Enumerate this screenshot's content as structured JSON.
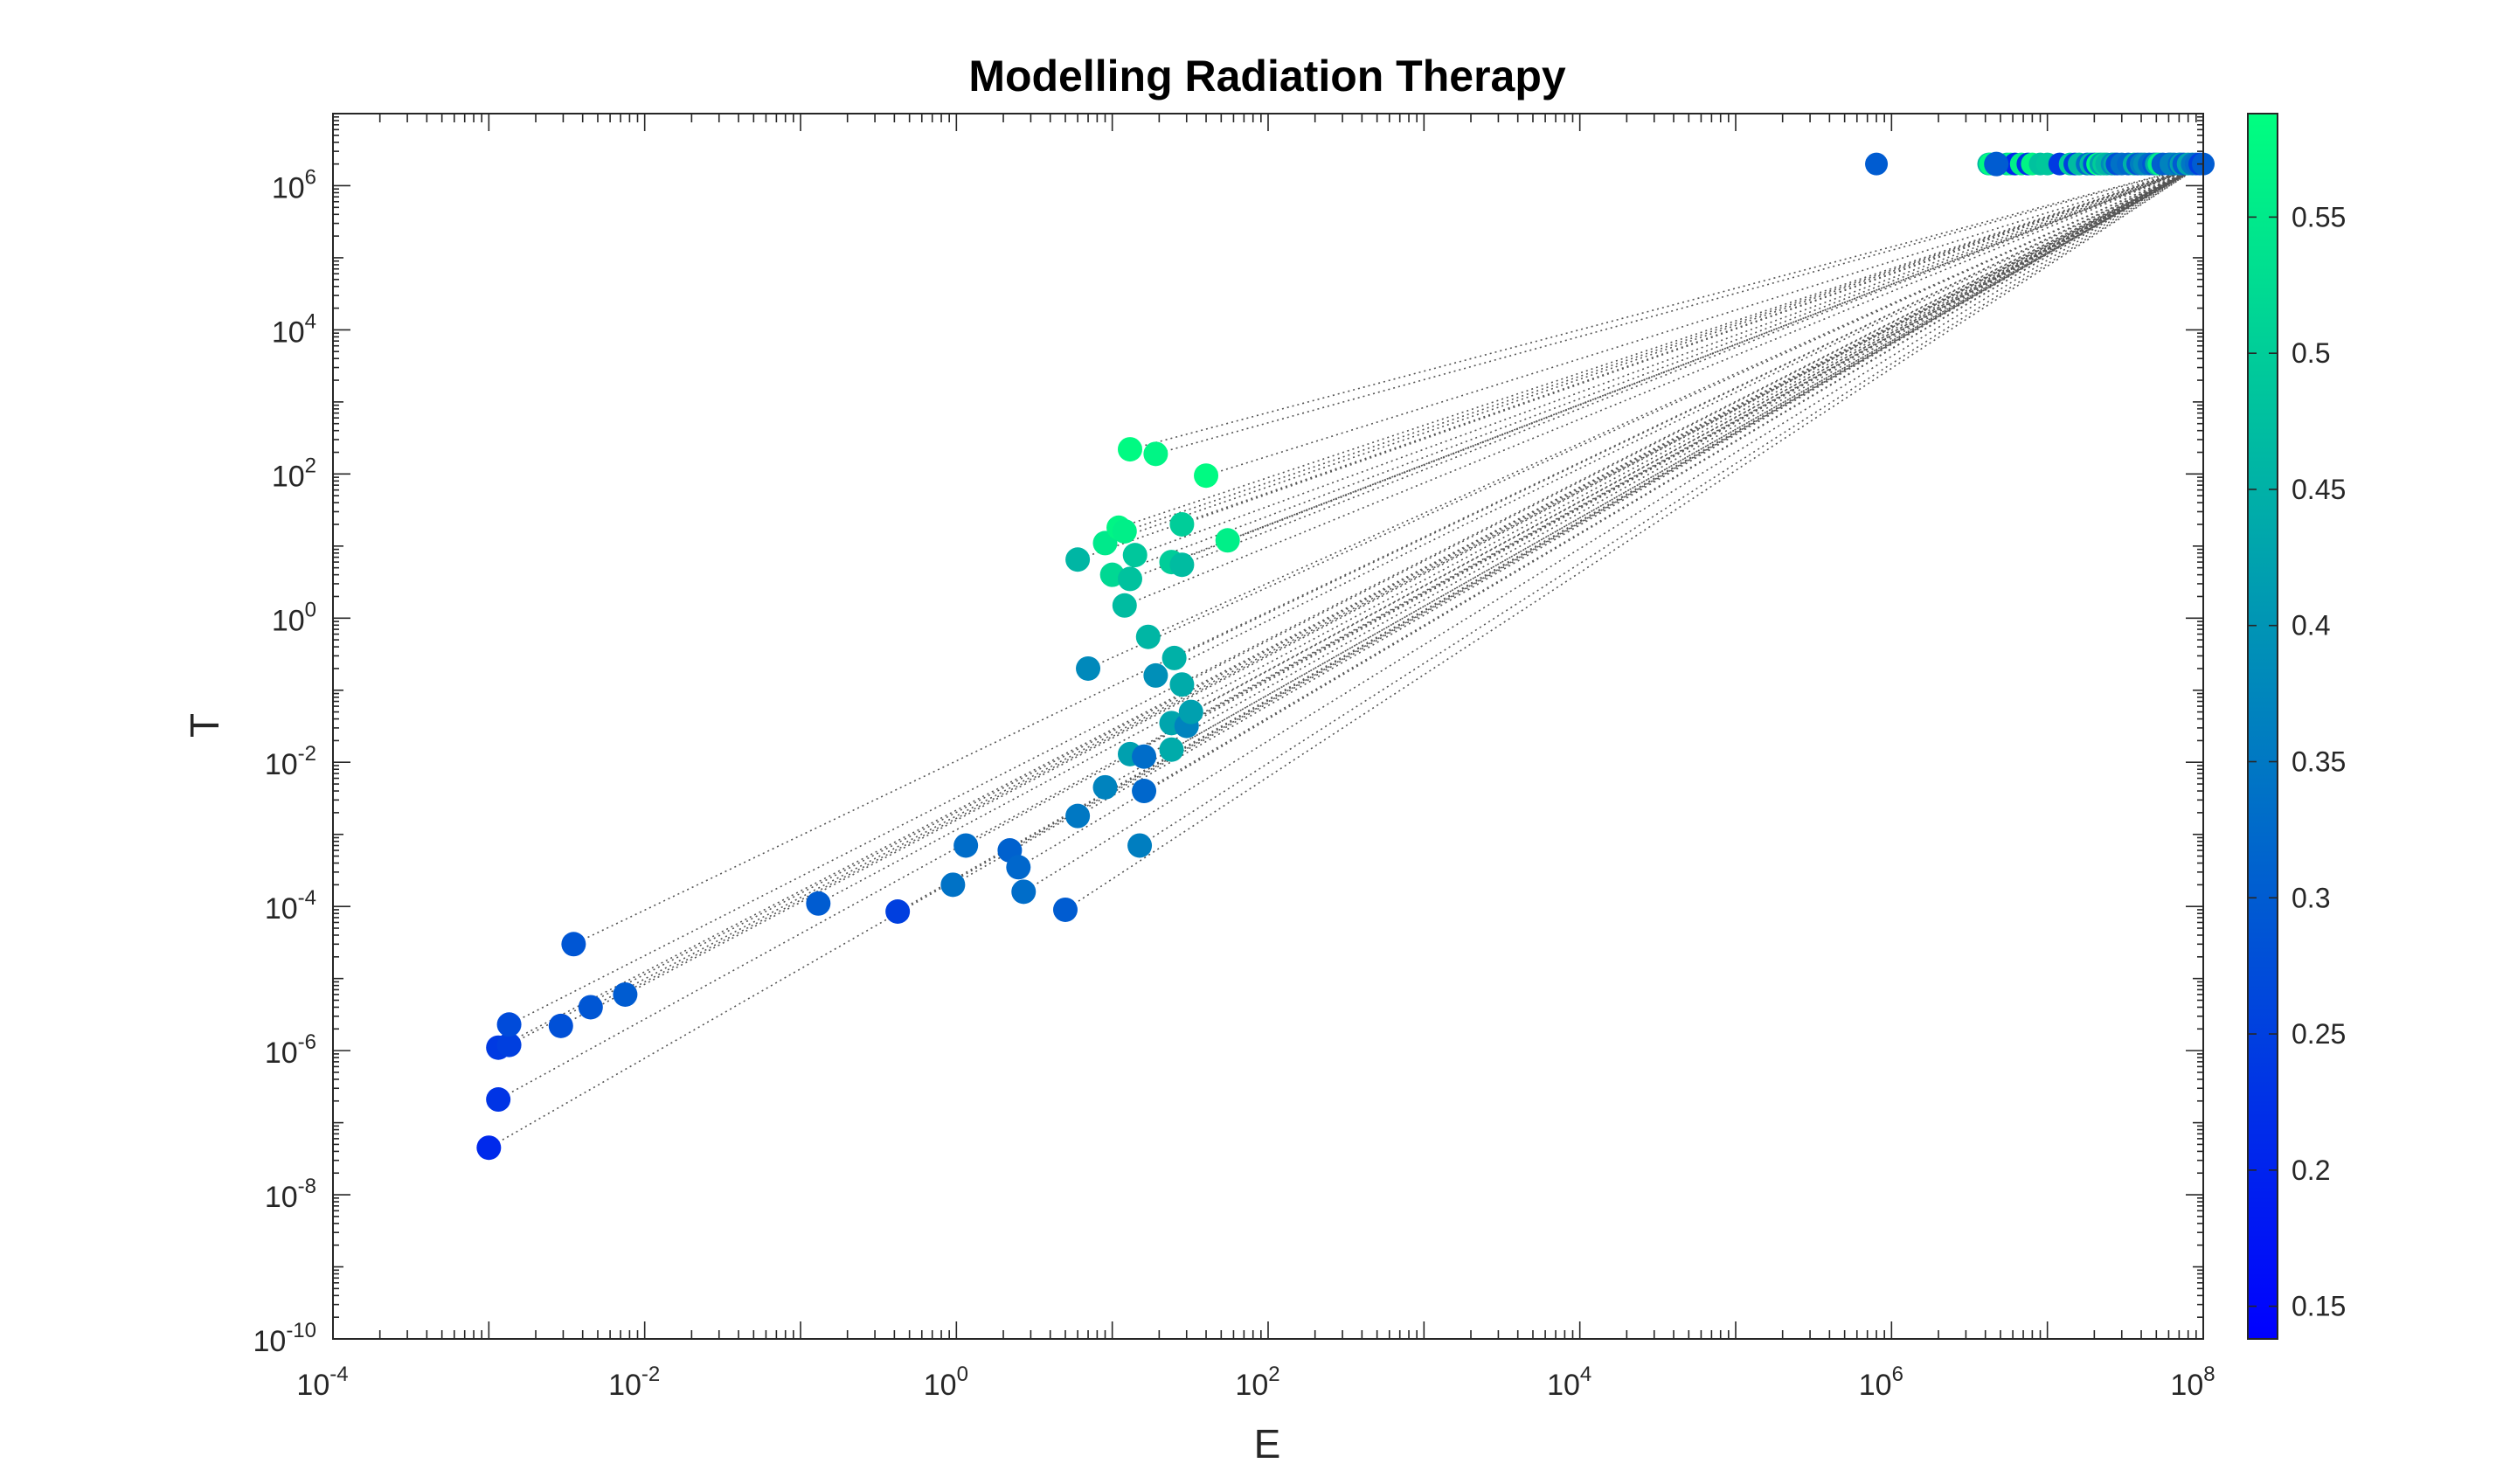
{
  "chart_data": {
    "type": "scatter",
    "title": "Modelling Radiation Therapy",
    "xlabel": "E",
    "ylabel": "T",
    "xscale": "log",
    "yscale": "log",
    "xlim": [
      0.0001,
      100000000
    ],
    "ylim": [
      1e-10,
      10000000
    ],
    "x_tick_labels": [
      {
        "base": "10",
        "exp": "-4"
      },
      {
        "base": "10",
        "exp": "-2"
      },
      {
        "base": "10",
        "exp": "0"
      },
      {
        "base": "10",
        "exp": "2"
      },
      {
        "base": "10",
        "exp": "4"
      },
      {
        "base": "10",
        "exp": "6"
      },
      {
        "base": "10",
        "exp": "8"
      }
    ],
    "y_tick_labels": [
      {
        "base": "10",
        "exp": "-10"
      },
      {
        "base": "10",
        "exp": "-8"
      },
      {
        "base": "10",
        "exp": "-6"
      },
      {
        "base": "10",
        "exp": "-4"
      },
      {
        "base": "10",
        "exp": "-2"
      },
      {
        "base": "10",
        "exp": "0"
      },
      {
        "base": "10",
        "exp": "2"
      },
      {
        "base": "10",
        "exp": "4"
      },
      {
        "base": "10",
        "exp": "6"
      }
    ],
    "grid": false,
    "colorbar": {
      "colormap": "winter",
      "range": [
        0.138,
        0.588
      ],
      "ticks": [
        "0.15",
        "0.2",
        "0.25",
        "0.3",
        "0.35",
        "0.4",
        "0.45",
        "0.5",
        "0.55"
      ],
      "position": "right"
    },
    "connector_style": "dotted",
    "final_T": 2000000,
    "points": [
      {
        "E": 0.001,
        "T": 4.5e-08,
        "E_final": 6200000,
        "c": 0.21
      },
      {
        "E": 0.00115,
        "T": 2.1e-07,
        "E_final": 7500000,
        "c": 0.23
      },
      {
        "E": 0.00115,
        "T": 1.1e-06,
        "E_final": 12000000,
        "c": 0.24
      },
      {
        "E": 0.00135,
        "T": 1.2e-06,
        "E_final": 15000000,
        "c": 0.25
      },
      {
        "E": 0.00135,
        "T": 2.3e-06,
        "E_final": 20000000,
        "c": 0.27
      },
      {
        "E": 0.0029,
        "T": 2.2e-06,
        "E_final": 28000000,
        "c": 0.28
      },
      {
        "E": 0.0045,
        "T": 4e-06,
        "E_final": 38000000,
        "c": 0.29
      },
      {
        "E": 0.0035,
        "T": 3e-05,
        "E_final": 48000000,
        "c": 0.29
      },
      {
        "E": 0.0075,
        "T": 6e-06,
        "E_final": 60000000,
        "c": 0.3
      },
      {
        "E": 0.13,
        "T": 0.00011,
        "E_final": 75000000,
        "c": 0.3
      },
      {
        "E": 0.42,
        "T": 8.5e-05,
        "E_final": 95000000,
        "c": 0.25
      },
      {
        "E": 0.95,
        "T": 0.0002,
        "E_final": 30000000,
        "c": 0.34
      },
      {
        "E": 1.15,
        "T": 0.0007,
        "E_final": 45000000,
        "c": 0.33
      },
      {
        "E": 2.2,
        "T": 0.0006,
        "E_final": 55000000,
        "c": 0.31
      },
      {
        "E": 2.5,
        "T": 0.00035,
        "E_final": 70000000,
        "c": 0.32
      },
      {
        "E": 2.7,
        "T": 0.00016,
        "E_final": 90000000,
        "c": 0.33
      },
      {
        "E": 5,
        "T": 9e-05,
        "E_final": 100000000,
        "c": 0.3
      },
      {
        "E": 6,
        "T": 0.0018,
        "E_final": 85000000,
        "c": 0.35
      },
      {
        "E": 9,
        "T": 0.0045,
        "E_final": 65000000,
        "c": 0.37
      },
      {
        "E": 15,
        "T": 0.0007,
        "E_final": 40000000,
        "c": 0.36
      },
      {
        "E": 16,
        "T": 0.004,
        "E_final": 33000000,
        "c": 0.32
      },
      {
        "E": 7,
        "T": 0.2,
        "E_final": 26000000,
        "c": 0.38
      },
      {
        "E": 13,
        "T": 0.013,
        "E_final": 22000000,
        "c": 0.42
      },
      {
        "E": 16,
        "T": 0.012,
        "E_final": 18000000,
        "c": 0.33
      },
      {
        "E": 24,
        "T": 0.015,
        "E_final": 50000000,
        "c": 0.44
      },
      {
        "E": 24,
        "T": 0.035,
        "E_final": 80000000,
        "c": 0.43
      },
      {
        "E": 30,
        "T": 0.032,
        "E_final": 62000000,
        "c": 0.37
      },
      {
        "E": 32,
        "T": 0.05,
        "E_final": 72000000,
        "c": 0.42
      },
      {
        "E": 19,
        "T": 0.16,
        "E_final": 42000000,
        "c": 0.39
      },
      {
        "E": 25,
        "T": 0.28,
        "E_final": 36000000,
        "c": 0.45
      },
      {
        "E": 28,
        "T": 0.12,
        "E_final": 27000000,
        "c": 0.44
      },
      {
        "E": 17,
        "T": 0.55,
        "E_final": 24000000,
        "c": 0.46
      },
      {
        "E": 12,
        "T": 1.5,
        "E_final": 16000000,
        "c": 0.47
      },
      {
        "E": 6,
        "T": 6.5,
        "E_final": 4200000,
        "c": 0.46
      },
      {
        "E": 10,
        "T": 4,
        "E_final": 5500000,
        "c": 0.52
      },
      {
        "E": 13,
        "T": 3.5,
        "E_final": 9000000,
        "c": 0.48
      },
      {
        "E": 14,
        "T": 7.5,
        "E_final": 10000000,
        "c": 0.49
      },
      {
        "E": 24,
        "T": 6,
        "E_final": 14000000,
        "c": 0.5
      },
      {
        "E": 28,
        "T": 5.5,
        "E_final": 19000000,
        "c": 0.47
      },
      {
        "E": 9,
        "T": 11,
        "E_final": 4800000,
        "c": 0.55
      },
      {
        "E": 11,
        "T": 18,
        "E_final": 8000000,
        "c": 0.57
      },
      {
        "E": 12,
        "T": 16,
        "E_final": 6800000,
        "c": 0.56
      },
      {
        "E": 28,
        "T": 20,
        "E_final": 23000000,
        "c": 0.5
      },
      {
        "E": 55,
        "T": 12,
        "E_final": 52000000,
        "c": 0.56
      },
      {
        "E": 40,
        "T": 95,
        "E_final": 21000000,
        "c": 0.58
      },
      {
        "E": 13,
        "T": 220,
        "E_final": 4300000,
        "c": 0.58
      },
      {
        "E": 19,
        "T": 190,
        "E_final": 5800000,
        "c": 0.57
      },
      {
        "E": 4700000,
        "T": 2000000,
        "E_final": 800000,
        "c": 0.3
      }
    ]
  }
}
